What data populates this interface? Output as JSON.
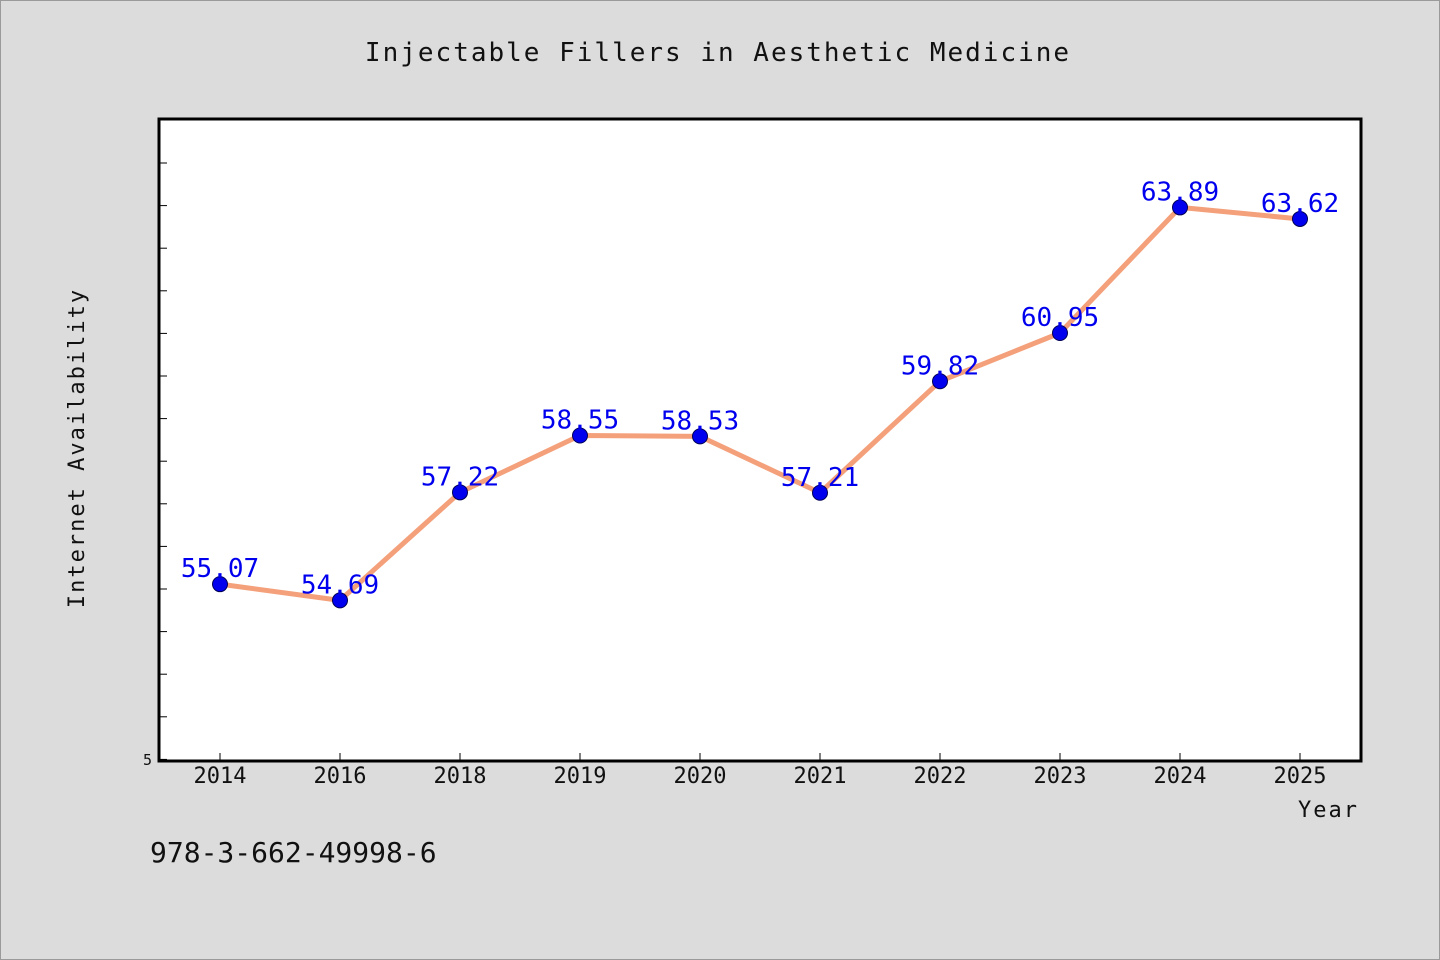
{
  "chart_data": {
    "type": "line",
    "title": "Injectable Fillers in Aesthetic Medicine",
    "xlabel": "Year",
    "ylabel": "Internet Availability",
    "categories": [
      "2014",
      "2016",
      "2018",
      "2019",
      "2020",
      "2021",
      "2022",
      "2023",
      "2024",
      "2025"
    ],
    "series": [
      {
        "values": [
          55.07,
          54.69,
          57.22,
          58.55,
          58.53,
          57.21,
          59.82,
          60.95,
          63.89,
          63.62
        ],
        "data_labels": [
          "55.07",
          "54.69",
          "57.22",
          "58.55",
          "58.53",
          "57.21",
          "59.82",
          "60.95",
          "63.89",
          "63.62"
        ],
        "line_color": "#f4a07a",
        "marker_color": "#0000ee"
      }
    ],
    "ylim": [
      50.93,
      65.96
    ],
    "y_tick_label": "5",
    "grid": false,
    "legend": "none"
  },
  "footnote": "978-3-662-49998-6"
}
